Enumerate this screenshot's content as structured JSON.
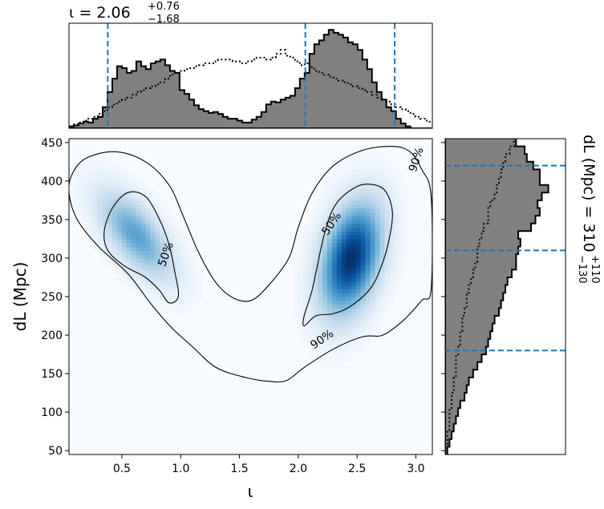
{
  "chart_data": {
    "type": "corner-plot",
    "main": {
      "type": "heatmap",
      "xlabel": "ι",
      "ylabel": "dL (Mpc)",
      "xlim": [
        0.05,
        3.14
      ],
      "ylim": [
        45,
        455
      ],
      "xticks": [
        0.5,
        1.0,
        1.5,
        2.0,
        2.5,
        3.0
      ],
      "xtick_labels": [
        "0.5",
        "1.0",
        "1.5",
        "2.0",
        "2.5",
        "3.0"
      ],
      "yticks": [
        50,
        100,
        150,
        200,
        250,
        300,
        350,
        400,
        450
      ],
      "ytick_labels": [
        "50",
        "100",
        "150",
        "200",
        "250",
        "300",
        "350",
        "400",
        "450"
      ],
      "colormap": "Blues",
      "modes": [
        {
          "x": 0.62,
          "y": 330,
          "sx": 0.22,
          "sy": 40,
          "rho": -0.65,
          "w": 0.55
        },
        {
          "x": 2.45,
          "y": 300,
          "sx": 0.18,
          "sy": 50,
          "rho": 0.35,
          "w": 1.0
        }
      ],
      "contours": [
        {
          "label": "50%",
          "paths": [
            [
              [
                0.55,
                385
              ],
              [
                0.42,
                365
              ],
              [
                0.35,
                335
              ],
              [
                0.38,
                310
              ],
              [
                0.52,
                290
              ],
              [
                0.7,
                275
              ],
              [
                0.82,
                258
              ],
              [
                0.9,
                242
              ],
              [
                0.98,
                250
              ],
              [
                0.95,
                282
              ],
              [
                0.9,
                318
              ],
              [
                0.82,
                350
              ],
              [
                0.7,
                380
              ]
            ],
            [
              [
                2.15,
                225
              ],
              [
                2.05,
                212
              ],
              [
                2.05,
                225
              ],
              [
                2.12,
                260
              ],
              [
                2.22,
                330
              ],
              [
                2.32,
                370
              ],
              [
                2.5,
                393
              ],
              [
                2.65,
                395
              ],
              [
                2.75,
                385
              ],
              [
                2.8,
                360
              ],
              [
                2.78,
                330
              ],
              [
                2.72,
                295
              ],
              [
                2.62,
                262
              ],
              [
                2.45,
                238
              ],
              [
                2.3,
                228
              ]
            ]
          ],
          "label_positions": [
            [
              0.87,
              305,
              -70
            ],
            [
              2.28,
              345,
              -55
            ]
          ]
        },
        {
          "label": "90%",
          "paths": [
            [
              [
                0.2,
                430
              ],
              [
                0.08,
                410
              ],
              [
                0.05,
                385
              ],
              [
                0.12,
                350
              ],
              [
                0.3,
                315
              ],
              [
                0.55,
                280
              ],
              [
                0.75,
                240
              ],
              [
                0.92,
                210
              ],
              [
                1.1,
                185
              ],
              [
                1.3,
                158
              ],
              [
                1.55,
                145
              ],
              [
                1.75,
                140
              ],
              [
                1.9,
                141
              ],
              [
                2.05,
                158
              ],
              [
                2.3,
                182
              ],
              [
                2.55,
                198
              ],
              [
                2.72,
                200
              ],
              [
                2.9,
                220
              ],
              [
                3.05,
                245
              ],
              [
                3.13,
                260
              ],
              [
                3.13,
                380
              ],
              [
                3.05,
                415
              ],
              [
                2.95,
                438
              ],
              [
                2.8,
                445
              ],
              [
                2.55,
                440
              ],
              [
                2.3,
                420
              ],
              [
                2.12,
                385
              ],
              [
                2.0,
                340
              ],
              [
                1.92,
                300
              ],
              [
                1.75,
                265
              ],
              [
                1.6,
                245
              ],
              [
                1.45,
                248
              ],
              [
                1.3,
                268
              ],
              [
                1.15,
                308
              ],
              [
                1.02,
                355
              ],
              [
                0.9,
                395
              ],
              [
                0.7,
                425
              ],
              [
                0.45,
                438
              ]
            ]
          ],
          "label_positions": [
            [
              2.2,
              195,
              -35
            ],
            [
              3.0,
              428,
              -72
            ]
          ]
        }
      ]
    },
    "top": {
      "type": "histogram",
      "title": "ι = 2.06+0.76−1.68",
      "title_main": "ι = 2.06",
      "title_sup": "+0.76",
      "title_sub": "−1.68",
      "xlim": [
        0.05,
        3.14
      ],
      "bin_edges_start": 0.05,
      "bin_width": 0.0409,
      "posterior": [
        2,
        3,
        5,
        7,
        6,
        10,
        12,
        22,
        38,
        52,
        65,
        63,
        58,
        60,
        70,
        65,
        62,
        68,
        70,
        72,
        66,
        60,
        58,
        40,
        36,
        30,
        24,
        20,
        18,
        16,
        17,
        15,
        12,
        10,
        10,
        8,
        6,
        6,
        9,
        12,
        17,
        25,
        28,
        27,
        30,
        32,
        34,
        42,
        52,
        58,
        78,
        88,
        92,
        98,
        103,
        100,
        98,
        95,
        90,
        88,
        82,
        72,
        62,
        48,
        38,
        30,
        22,
        18,
        10,
        5,
        2,
        0,
        0,
        0,
        0,
        0
      ],
      "prior": [
        2,
        4,
        6,
        8,
        10,
        12,
        15,
        18,
        22,
        25,
        28,
        30,
        32,
        35,
        38,
        40,
        42,
        44,
        46,
        48,
        52,
        56,
        58,
        60,
        62,
        63,
        65,
        66,
        68,
        68,
        70,
        72,
        72,
        72,
        70,
        70,
        68,
        70,
        72,
        74,
        74,
        72,
        74,
        78,
        82,
        76,
        74,
        70,
        66,
        68,
        64,
        60,
        58,
        56,
        54,
        52,
        50,
        48,
        46,
        44,
        42,
        40,
        38,
        35,
        32,
        30,
        28,
        25,
        22,
        20,
        18,
        15,
        12,
        10,
        8,
        6
      ],
      "ymax": 110,
      "quantile_lines": [
        0.38,
        2.06,
        2.82
      ]
    },
    "right": {
      "type": "histogram",
      "title": "dL (Mpc) = 310+110−130",
      "title_main": "dL (Mpc) = 310",
      "title_sup": "+110",
      "title_sub": "−130",
      "ylim": [
        45,
        455
      ],
      "bin_edges_start": 45,
      "bin_width": 10,
      "posterior": [
        1,
        2,
        3,
        4,
        5,
        6,
        7,
        9,
        10,
        11,
        13,
        15,
        17,
        19,
        20,
        21,
        22,
        23,
        25,
        26,
        27,
        28,
        29,
        31,
        33,
        33,
        34,
        35,
        34,
        40,
        42,
        44,
        43,
        45,
        48,
        44,
        44,
        41,
        38,
        37,
        33,
        33,
        30,
        30,
        28,
        26,
        23,
        21,
        16,
        13,
        10,
        11,
        8,
        4,
        5,
        8,
        5
      ],
      "prior": [
        1,
        1,
        1,
        2,
        2,
        2,
        3,
        3,
        4,
        4,
        5,
        5,
        5,
        6,
        7,
        7,
        8,
        8,
        9,
        10,
        10,
        11,
        12,
        13,
        14,
        15,
        15,
        16,
        17,
        18,
        20,
        20,
        21,
        23,
        24,
        25,
        26,
        27,
        28,
        30,
        32,
        33,
        34,
        36,
        38,
        40,
        42,
        44,
        47,
        48,
        50,
        52,
        54,
        55,
        52,
        50,
        48
      ],
      "xmax": 56,
      "quantile_lines": [
        180,
        310,
        420
      ]
    }
  }
}
